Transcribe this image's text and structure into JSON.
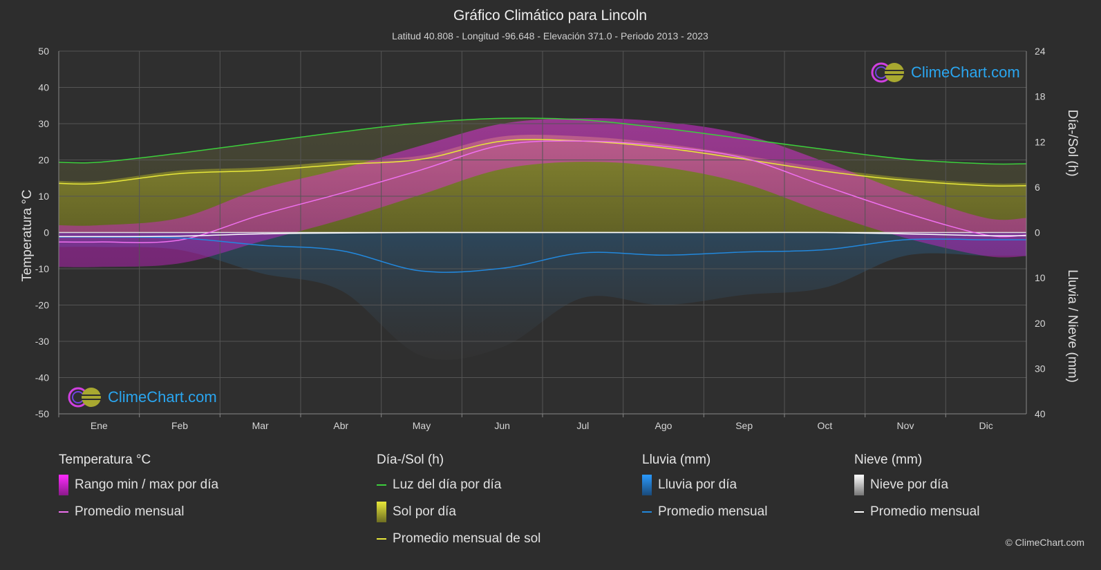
{
  "title": "Gráfico Climático para Lincoln",
  "subtitle": "Latitud 40.808 - Longitud -96.648 - Elevación 371.0 - Periodo 2013 - 2023",
  "axes": {
    "left_label": "Temperatura °C",
    "right_top_label": "Día-/Sol (h)",
    "right_bottom_label": "Lluvia / Nieve (mm)"
  },
  "logo_text": "ClimeChart.com",
  "copyright": "© ClimeChart.com",
  "legend": {
    "temperature": {
      "title": "Temperatura °C",
      "items": [
        "Rango min / max por día",
        "Promedio mensual"
      ]
    },
    "daysun": {
      "title": "Día-/Sol (h)",
      "items": [
        "Luz del día por día",
        "Sol por día",
        "Promedio mensual de sol"
      ]
    },
    "rain": {
      "title": "Lluvia (mm)",
      "items": [
        "Lluvia por día",
        "Promedio mensual"
      ]
    },
    "snow": {
      "title": "Nieve (mm)",
      "items": [
        "Nieve por día",
        "Promedio mensual"
      ]
    }
  },
  "colors": {
    "background": "#2d2d2d",
    "grid": "#555555",
    "daylight": "#3ccf3c",
    "sunshine_avg": "#e8e83a",
    "sunshine_fill": "#8c8c28",
    "temp_avg": "#f070f0",
    "temp_range": "#c81fc8",
    "rain": "#2288dd",
    "snow": "#ffffff"
  },
  "chart_data": {
    "type": "line",
    "categories": [
      "Ene",
      "Feb",
      "Mar",
      "Abr",
      "May",
      "Jun",
      "Jul",
      "Ago",
      "Sep",
      "Oct",
      "Nov",
      "Dic"
    ],
    "left_axis": {
      "ylim": [
        -50,
        50
      ],
      "ticks": [
        "50",
        "40",
        "30",
        "20",
        "10",
        "0",
        "-10",
        "-20",
        "-30",
        "-40",
        "-50"
      ]
    },
    "right_axis_top": {
      "ylim": [
        0,
        24
      ],
      "ticks": [
        "24",
        "18",
        "12",
        "6",
        "0"
      ]
    },
    "right_axis_bottom": {
      "ylim": [
        0,
        40
      ],
      "ticks": [
        "10",
        "20",
        "30",
        "40"
      ]
    },
    "grid": true,
    "series": [
      {
        "name": "Luz del día por día",
        "axis": "hours",
        "values": [
          9.3,
          10.5,
          11.9,
          13.3,
          14.5,
          15.1,
          14.9,
          13.8,
          12.4,
          11.0,
          9.7,
          9.1
        ]
      },
      {
        "name": "Promedio mensual de sol",
        "axis": "hours",
        "values": [
          6.5,
          7.8,
          8.2,
          9.0,
          9.7,
          12.1,
          12.1,
          11.2,
          9.7,
          8.1,
          6.9,
          6.2
        ]
      },
      {
        "name": "Promedio mensual",
        "axis": "temperature",
        "values": [
          -2.6,
          -2.1,
          4.8,
          10.8,
          17.3,
          24.1,
          25.2,
          23.8,
          20.5,
          12.8,
          5.4,
          -0.7
        ]
      },
      {
        "name": "Rango min / max por día (max)",
        "axis": "temperature",
        "values": [
          2.0,
          4.0,
          12.0,
          17.5,
          24.0,
          30.0,
          31.5,
          30.5,
          27.0,
          19.5,
          11.0,
          4.0
        ]
      },
      {
        "name": "Rango min / max por día (min)",
        "axis": "temperature",
        "values": [
          -9.5,
          -8.5,
          -2.5,
          3.5,
          10.5,
          17.5,
          19.5,
          18.0,
          13.5,
          5.5,
          -1.5,
          -6.5
        ]
      },
      {
        "name": "Lluvia: Promedio mensual",
        "axis": "precip",
        "values": [
          1.0,
          1.2,
          2.8,
          4.0,
          8.5,
          7.9,
          4.5,
          5.0,
          4.3,
          3.8,
          1.6,
          1.6
        ]
      },
      {
        "name": "Nieve: Promedio mensual",
        "axis": "precip",
        "values": [
          0.9,
          0.8,
          0.3,
          0.1,
          0.0,
          0.0,
          0.0,
          0.0,
          0.0,
          0.0,
          0.3,
          0.7
        ]
      }
    ]
  }
}
